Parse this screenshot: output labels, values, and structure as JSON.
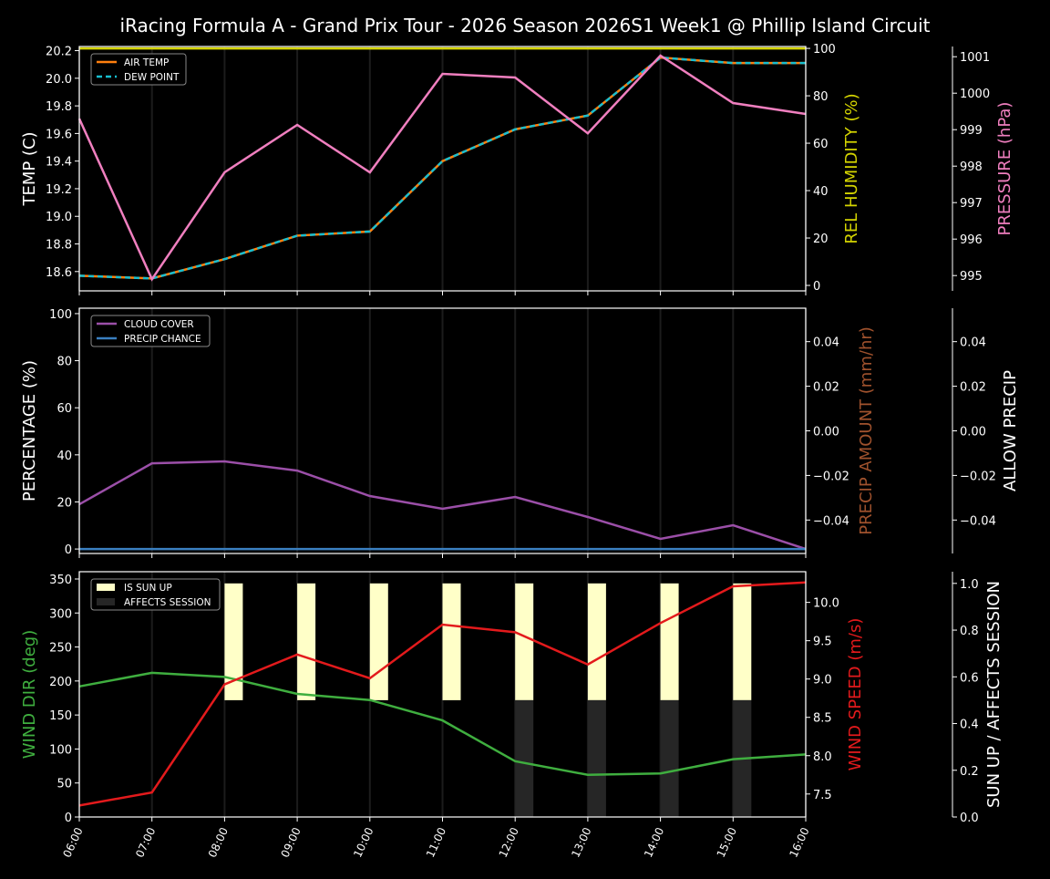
{
  "title": "iRacing Formula A - Grand Prix Tour - 2026 Season  2026S1 Week1 @ Phillip Island Circuit",
  "colors": {
    "background": "#000000",
    "air_temp": "#ff7f0e",
    "dew_point": "#17becf",
    "humidity": "#d4d400",
    "pressure": "#f07fbf",
    "cloud_cover": "#9b4fa8",
    "precip_chance": "#3a7fc0",
    "precip_amount_label": "#a0522d",
    "wind_dir": "#3fae3f",
    "wind_speed": "#e31a1c",
    "sun_up": "#ffffc8",
    "affects_session": "#262626"
  },
  "chart_data": [
    {
      "type": "line",
      "x": [
        "06:00",
        "07:00",
        "08:00",
        "09:00",
        "10:00",
        "11:00",
        "12:00",
        "13:00",
        "14:00",
        "15:00",
        "16:00"
      ],
      "legend": "top-left",
      "grid": "vertical",
      "axes": {
        "left": {
          "label": "TEMP (C)",
          "range": [
            18.46,
            20.23
          ],
          "ticks": [
            "18.6",
            "18.8",
            "19.0",
            "19.2",
            "19.4",
            "19.6",
            "19.8",
            "20.0",
            "20.2"
          ]
        },
        "right": {
          "label": "REL HUMIDITY (%)",
          "range": [
            -2.3,
            100.8
          ],
          "ticks": [
            "0",
            "20",
            "40",
            "60",
            "80",
            "100"
          ]
        },
        "right2": {
          "label": "PRESSURE (hPa)",
          "range": [
            994.58,
            1001.28
          ],
          "ticks": [
            "995",
            "996",
            "997",
            "998",
            "999",
            "1000",
            "1001"
          ]
        }
      },
      "series": [
        {
          "name": "AIR TEMP",
          "axis": "left",
          "style": "solid",
          "values": [
            18.57,
            18.55,
            18.69,
            18.86,
            18.89,
            19.4,
            19.63,
            19.73,
            20.15,
            20.11,
            20.11
          ]
        },
        {
          "name": "DEW POINT",
          "axis": "left",
          "style": "dashed",
          "values": [
            18.57,
            18.55,
            18.69,
            18.86,
            18.89,
            19.4,
            19.63,
            19.73,
            20.15,
            20.11,
            20.11
          ]
        },
        {
          "axis": "right",
          "values": [
            100,
            100,
            100,
            100,
            100,
            100,
            100,
            100,
            100,
            100,
            100
          ]
        },
        {
          "axis": "right2",
          "values": [
            999.3,
            994.9,
            997.83,
            999.13,
            997.83,
            1000.53,
            1000.43,
            998.9,
            1001.03,
            999.73,
            999.43
          ]
        }
      ]
    },
    {
      "type": "line",
      "x": [
        "06:00",
        "07:00",
        "08:00",
        "09:00",
        "10:00",
        "11:00",
        "12:00",
        "13:00",
        "14:00",
        "15:00",
        "16:00"
      ],
      "legend": "top-left",
      "grid": "vertical",
      "axes": {
        "left": {
          "label": "PERCENTAGE (%)",
          "range": [
            -1.9,
            102.3
          ],
          "ticks": [
            "0",
            "20",
            "40",
            "60",
            "80",
            "100"
          ]
        },
        "right": {
          "label": "PRECIP AMOUNT (mm/hr)",
          "range": [
            -0.055,
            0.055
          ],
          "ticks": [
            "−0.04",
            "−0.02",
            "0.00",
            "0.02",
            "0.04"
          ]
        },
        "right2": {
          "label": "ALLOW PRECIP",
          "range": [
            -0.055,
            0.055
          ],
          "ticks": [
            "−0.04",
            "−0.02",
            "0.00",
            "0.02",
            "0.04"
          ]
        }
      },
      "series": [
        {
          "name": "CLOUD COVER",
          "axis": "left",
          "values": [
            19.0,
            36.4,
            37.2,
            33.3,
            22.5,
            17.1,
            22.1,
            13.6,
            4.3,
            10.1,
            0
          ]
        },
        {
          "name": "PRECIP CHANCE",
          "axis": "left",
          "values": [
            0,
            0,
            0,
            0,
            0,
            0,
            0,
            0,
            0,
            0,
            0
          ]
        }
      ]
    },
    {
      "type": "line",
      "x": [
        "06:00",
        "07:00",
        "08:00",
        "09:00",
        "10:00",
        "11:00",
        "12:00",
        "13:00",
        "14:00",
        "15:00",
        "16:00"
      ],
      "legend": "top-left",
      "grid": "vertical",
      "axes": {
        "left": {
          "label": "WIND DIR (deg)",
          "range": [
            0,
            360.7
          ],
          "ticks": [
            "0",
            "50",
            "100",
            "150",
            "200",
            "250",
            "300",
            "350"
          ]
        },
        "right": {
          "label": "WIND SPEED (m/s)",
          "range": [
            7.2,
            10.4
          ],
          "ticks": [
            "7.5",
            "8.0",
            "8.5",
            "9.0",
            "9.5",
            "10.0"
          ]
        },
        "right2": {
          "label": "SUN UP / AFFECTS SESSION",
          "range": [
            0,
            1.05
          ],
          "ticks": [
            "0.0",
            "0.2",
            "0.4",
            "0.6",
            "0.8",
            "1.0"
          ]
        }
      },
      "series": [
        {
          "axis": "left",
          "values": [
            192,
            212,
            206,
            181,
            172,
            142,
            82,
            62,
            64,
            85,
            92
          ]
        },
        {
          "axis": "right",
          "values": [
            7.35,
            7.52,
            8.93,
            9.32,
            9.01,
            9.71,
            9.61,
            9.19,
            9.73,
            10.21,
            10.26
          ]
        },
        {
          "name": "IS SUN UP",
          "axis": "right2",
          "type": "bar",
          "values": [
            0,
            0,
            1,
            1,
            1,
            1,
            1,
            1,
            1,
            1,
            0
          ]
        },
        {
          "name": "AFFECTS SESSION",
          "axis": "right2",
          "type": "bar",
          "values": [
            0,
            0,
            0,
            0,
            0,
            0,
            1,
            1,
            1,
            1,
            0
          ]
        }
      ]
    }
  ]
}
